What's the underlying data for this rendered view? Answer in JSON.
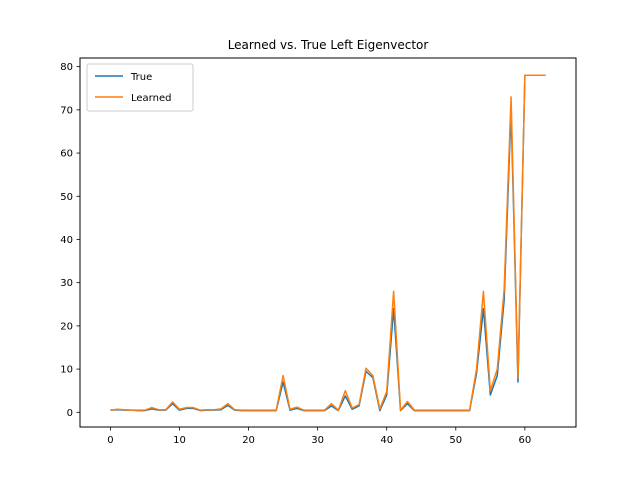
{
  "chart_data": {
    "type": "line",
    "title": "Learned vs. True Left Eigenvector",
    "xlabel": "",
    "ylabel": "",
    "xlim": [
      -4.4,
      67.4
    ],
    "ylim": [
      -3.4,
      82.0
    ],
    "xticks": [
      0,
      10,
      20,
      30,
      40,
      50,
      60
    ],
    "yticks": [
      0,
      10,
      20,
      30,
      40,
      50,
      60,
      70,
      80
    ],
    "grid": false,
    "legend_position": "top-left",
    "x": [
      0,
      1,
      2,
      3,
      4,
      5,
      6,
      7,
      8,
      9,
      10,
      11,
      12,
      13,
      14,
      15,
      16,
      17,
      18,
      19,
      20,
      21,
      22,
      23,
      24,
      25,
      26,
      27,
      28,
      29,
      30,
      31,
      32,
      33,
      34,
      35,
      36,
      37,
      38,
      39,
      40,
      41,
      42,
      43,
      44,
      45,
      46,
      47,
      48,
      49,
      50,
      51,
      52,
      53,
      54,
      55,
      56,
      57,
      58,
      59,
      60,
      61,
      62,
      63
    ],
    "series": [
      {
        "name": "True",
        "color": "#1f77b4",
        "values": [
          0.5,
          0.6,
          0.5,
          0.5,
          0.4,
          0.4,
          0.8,
          0.5,
          0.5,
          2.0,
          0.5,
          0.9,
          0.9,
          0.4,
          0.5,
          0.5,
          0.6,
          1.6,
          0.5,
          0.4,
          0.4,
          0.4,
          0.4,
          0.4,
          0.4,
          7.0,
          0.5,
          0.9,
          0.4,
          0.4,
          0.4,
          0.4,
          1.5,
          0.4,
          3.8,
          0.7,
          1.5,
          9.5,
          8.0,
          0.4,
          4.0,
          24.0,
          0.4,
          2.0,
          0.4,
          0.4,
          0.4,
          0.4,
          0.4,
          0.4,
          0.4,
          0.4,
          0.4,
          9.0,
          24.0,
          4.0,
          8.5,
          26.0,
          70.0,
          7.0,
          78.0,
          78.0,
          78.0,
          78.0
        ]
      },
      {
        "name": "Learned",
        "color": "#ff7f0e",
        "values": [
          0.5,
          0.7,
          0.6,
          0.5,
          0.5,
          0.5,
          1.1,
          0.6,
          0.6,
          2.4,
          0.7,
          1.1,
          1.1,
          0.5,
          0.6,
          0.6,
          0.8,
          2.0,
          0.6,
          0.5,
          0.5,
          0.5,
          0.5,
          0.5,
          0.5,
          8.5,
          0.7,
          1.2,
          0.5,
          0.5,
          0.5,
          0.5,
          2.0,
          0.5,
          5.0,
          1.0,
          1.8,
          10.2,
          8.5,
          0.8,
          4.8,
          28.0,
          0.5,
          2.5,
          0.5,
          0.5,
          0.5,
          0.5,
          0.5,
          0.5,
          0.5,
          0.5,
          0.5,
          10.0,
          28.0,
          5.0,
          10.0,
          28.5,
          73.0,
          8.0,
          78.0,
          78.0,
          78.0,
          78.0
        ]
      }
    ]
  }
}
